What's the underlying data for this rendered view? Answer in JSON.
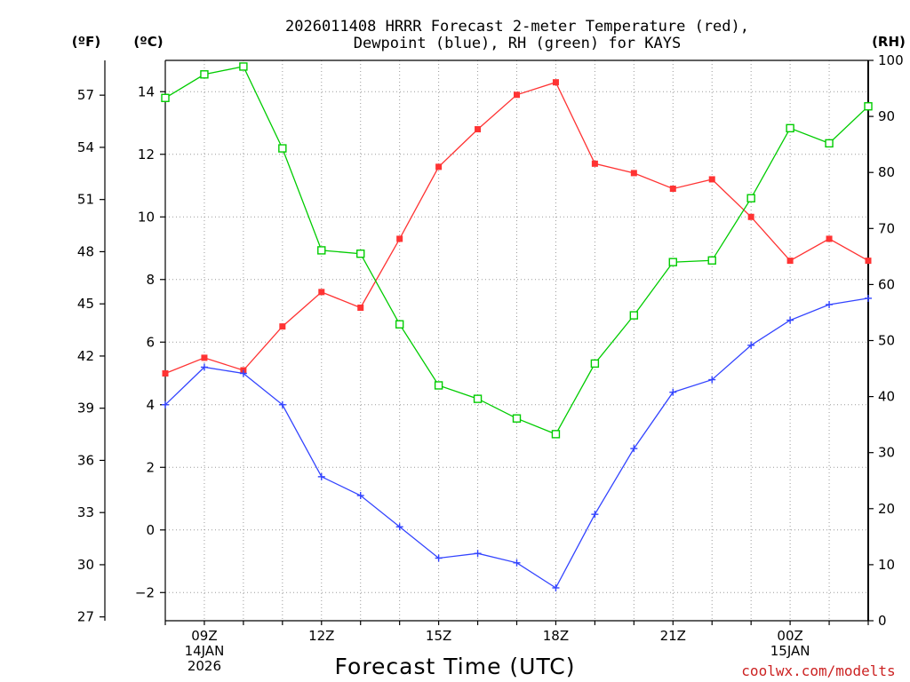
{
  "chart_data": {
    "type": "line",
    "title": "2026011408 HRRR Forecast 2-meter Temperature (red),",
    "subtitle": "Dewpoint (blue), RH (green) for KAYS",
    "xlabel": "Forecast Time (UTC)",
    "watermark": "coolwx.com/modelts",
    "unit_labels": {
      "fahrenheit": "(ºF)",
      "celsius": "(ºC)",
      "rh": "(RH)"
    },
    "x_hours": [
      8,
      9,
      10,
      11,
      12,
      13,
      14,
      15,
      16,
      17,
      18,
      19,
      20,
      21,
      22,
      23,
      24,
      25,
      26
    ],
    "x_range": [
      8,
      26
    ],
    "x_ticks": [
      {
        "hour": 9,
        "lines": [
          "09Z",
          "14JAN",
          "2026"
        ]
      },
      {
        "hour": 12,
        "lines": [
          "12Z"
        ]
      },
      {
        "hour": 15,
        "lines": [
          "15Z"
        ]
      },
      {
        "hour": 18,
        "lines": [
          "18Z"
        ]
      },
      {
        "hour": 21,
        "lines": [
          "21Z"
        ]
      },
      {
        "hour": 24,
        "lines": [
          "00Z",
          "15JAN"
        ]
      }
    ],
    "celsius_axis": {
      "range": [
        -2.9,
        15.0
      ],
      "ticks": [
        "14",
        "12",
        "10",
        "8",
        "6",
        "4",
        "2",
        "0",
        "−2"
      ],
      "tick_values": [
        14,
        12,
        10,
        8,
        6,
        4,
        2,
        0,
        -2
      ]
    },
    "fahrenheit_axis": {
      "ticks": [
        "57",
        "54",
        "51",
        "48",
        "45",
        "42",
        "39",
        "36",
        "33",
        "30",
        "27"
      ],
      "tick_values": [
        57,
        54,
        51,
        48,
        45,
        42,
        39,
        36,
        33,
        30,
        27
      ]
    },
    "rh_axis": {
      "range": [
        0,
        100
      ],
      "ticks": [
        "100",
        "90",
        "80",
        "70",
        "60",
        "50",
        "40",
        "30",
        "20",
        "10",
        "0"
      ],
      "tick_values": [
        100,
        90,
        80,
        70,
        60,
        50,
        40,
        30,
        20,
        10,
        0
      ]
    },
    "series": [
      {
        "name": "Temperature",
        "axis": "celsius",
        "color": "#ff3333",
        "marker": "filled-square",
        "values": [
          5.0,
          5.5,
          5.1,
          6.5,
          7.6,
          7.1,
          9.3,
          11.6,
          12.8,
          13.9,
          14.3,
          11.7,
          11.4,
          10.9,
          11.2,
          10.0,
          8.6,
          9.3,
          8.6
        ]
      },
      {
        "name": "Dewpoint",
        "axis": "celsius",
        "color": "#3344ff",
        "marker": "plus",
        "values": [
          4.0,
          5.2,
          5.0,
          4.0,
          1.7,
          1.1,
          0.1,
          -0.9,
          -0.75,
          -1.05,
          -1.85,
          0.5,
          2.6,
          4.4,
          4.8,
          5.9,
          6.7,
          7.2,
          7.4
        ]
      },
      {
        "name": "RH",
        "axis": "rh",
        "color": "#00cc00",
        "marker": "open-square",
        "values": [
          93.3,
          97.5,
          98.9,
          84.3,
          66.1,
          65.5,
          52.9,
          42.0,
          39.6,
          36.1,
          33.3,
          45.9,
          54.5,
          64.0,
          64.3,
          75.4,
          87.9,
          85.2,
          91.8
        ]
      }
    ]
  }
}
